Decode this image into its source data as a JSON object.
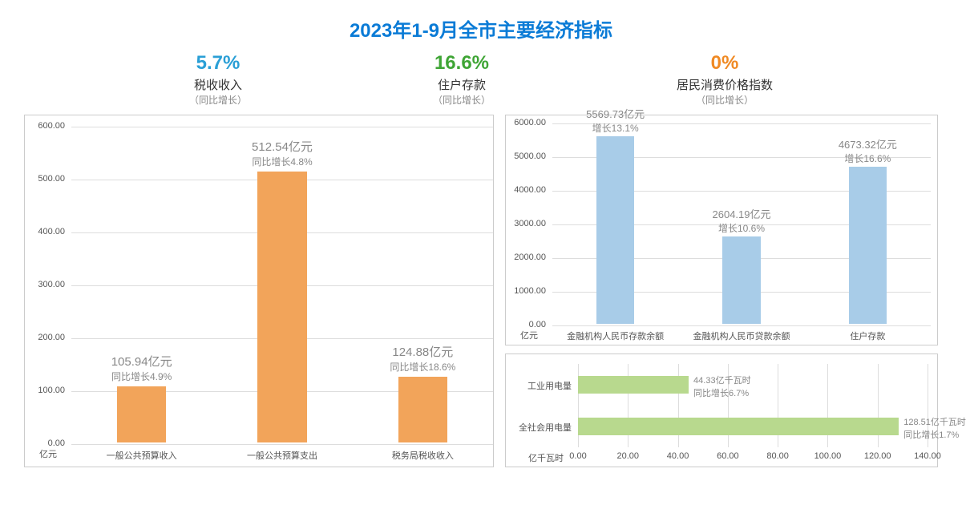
{
  "title": "2023年1-9月全市主要经济指标",
  "colors": {
    "title": "#0a7bd6",
    "stat1": "#2a9fd6",
    "stat2": "#3fa535",
    "stat3": "#f08a24",
    "orange_bar": "#f2a45a",
    "blue_bar": "#a8cce8",
    "green_bar": "#b8d98e",
    "grid": "#dddddd",
    "border": "#cccccc",
    "label_grey": "#888888",
    "axis_text": "#555555",
    "bg": "#ffffff"
  },
  "stats": [
    {
      "pct": "5.7%",
      "name": "税收收入",
      "sub": "（同比增长）",
      "color": "#2a9fd6"
    },
    {
      "pct": "16.6%",
      "name": "住户存款",
      "sub": "（同比增长）",
      "color": "#3fa535"
    },
    {
      "pct": "0%",
      "name": "居民消费价格指数",
      "sub": "（同比增长）",
      "color": "#f08a24"
    }
  ],
  "chart_left": {
    "type": "bar",
    "unit": "亿元",
    "ymax": 600,
    "ytick_step": 100,
    "yticks": [
      "0.00",
      "100.00",
      "200.00",
      "300.00",
      "400.00",
      "500.00",
      "600.00"
    ],
    "bar_color": "#f2a45a",
    "bar_width_ratio": 0.35,
    "title_fontsize": 15,
    "sub_fontsize": 12,
    "axis_fontsize": 11,
    "categories": [
      "一般公共预算收入",
      "一般公共预算支出",
      "税务局税收收入"
    ],
    "values": [
      105.94,
      512.54,
      124.88
    ],
    "labels_line1": [
      "105.94亿元",
      "512.54亿元",
      "124.88亿元"
    ],
    "labels_line2": [
      "同比增长4.9%",
      "同比增长4.8%",
      "同比增长18.6%"
    ]
  },
  "chart_rt": {
    "type": "bar",
    "unit": "亿元",
    "ymax": 6000,
    "ytick_step": 1000,
    "yticks": [
      "0.00",
      "1000.00",
      "2000.00",
      "3000.00",
      "4000.00",
      "5000.00",
      "6000.00"
    ],
    "bar_color": "#a8cce8",
    "bar_width_ratio": 0.3,
    "title_fontsize": 13,
    "sub_fontsize": 12,
    "axis_fontsize": 11,
    "categories": [
      "金融机构人民币存款余额",
      "金融机构人民币贷款余额",
      "住户存款"
    ],
    "values": [
      5569.73,
      2604.19,
      4673.32
    ],
    "labels_line1": [
      "5569.73亿元",
      "2604.19亿元",
      "4673.32亿元"
    ],
    "labels_line2": [
      "增长13.1%",
      "增长10.6%",
      "增长16.6%"
    ]
  },
  "chart_rb": {
    "type": "hbar",
    "unit": "亿千瓦时",
    "xmax": 140,
    "xtick_step": 20,
    "xticks": [
      "0.00",
      "20.00",
      "40.00",
      "60.00",
      "80.00",
      "100.00",
      "120.00",
      "140.00"
    ],
    "bar_color": "#b8d98e",
    "axis_fontsize": 11,
    "categories": [
      "工业用电量",
      "全社会用电量"
    ],
    "values": [
      44.33,
      128.51
    ],
    "labels_line1": [
      "44.33亿千瓦时",
      "128.51亿千瓦时"
    ],
    "labels_line2": [
      "同比增长6.7%",
      "同比增长1.7%"
    ]
  }
}
